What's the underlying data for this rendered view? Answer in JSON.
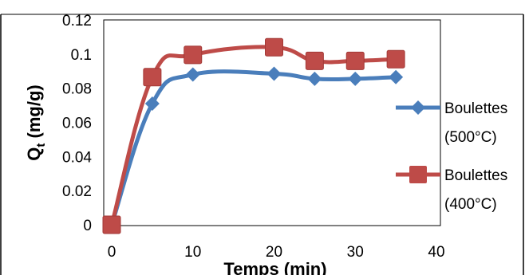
{
  "chart_data": {
    "type": "line",
    "title": "",
    "xlabel": "Temps (min)",
    "ylabel_main": "Q",
    "ylabel_sub": "t",
    "ylabel_rest": " (mg/g)",
    "xlim": [
      0,
      40
    ],
    "ylim": [
      0,
      0.12
    ],
    "x_ticks": [
      "0",
      "10",
      "20",
      "30",
      "40"
    ],
    "y_ticks": [
      "0",
      "0.02",
      "0.04",
      "0.06",
      "0.08",
      "0.1",
      "0.12"
    ],
    "grid": false,
    "legend_position": "right",
    "series": [
      {
        "name_line1": "Boulettes",
        "name_line2": "(500°C)",
        "color": "#4a7ebb",
        "marker": "diamond",
        "x": [
          0,
          5,
          10,
          20,
          25,
          30,
          35
        ],
        "y": [
          0,
          0.071,
          0.088,
          0.0885,
          0.0855,
          0.0855,
          0.0865
        ]
      },
      {
        "name_line1": "Boulettes",
        "name_line2": "(400°C)",
        "color": "#be4b48",
        "marker": "square",
        "x": [
          0,
          5,
          10,
          20,
          25,
          30,
          35
        ],
        "y": [
          0,
          0.0865,
          0.0995,
          0.104,
          0.096,
          0.096,
          0.097
        ]
      }
    ]
  }
}
